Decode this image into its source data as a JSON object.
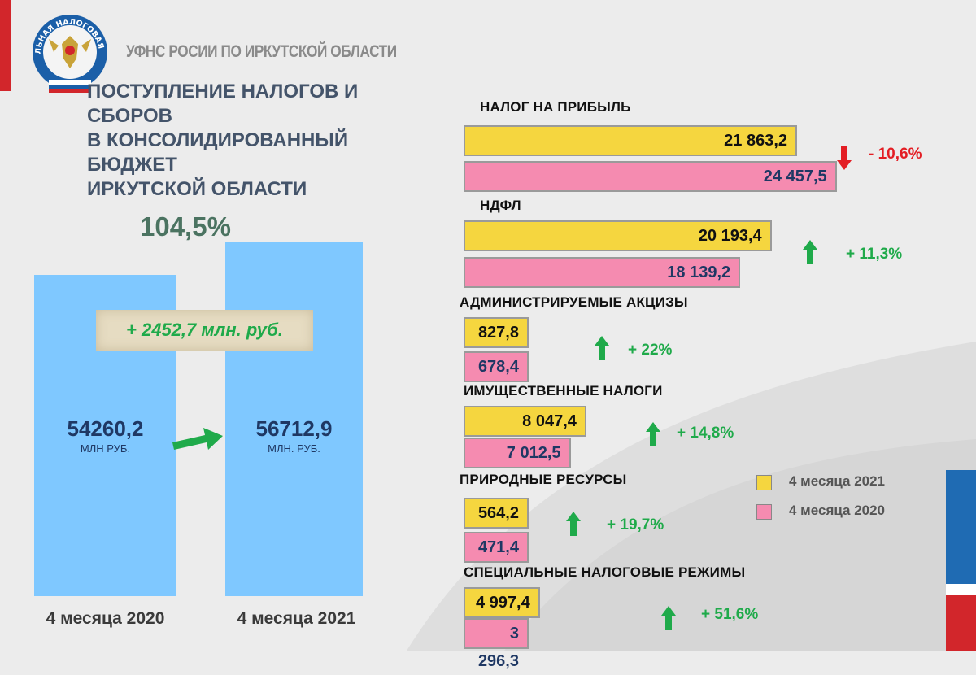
{
  "header": {
    "org": "УФНС РОСИИ ПО ИРКУТСКОЙ ОБЛАСТИ",
    "logo_text": "ФЕДЕРАЛЬНАЯ НАЛОГОВАЯ СЛУЖБА"
  },
  "title_lines": [
    "ПОСТУПЛЕНИЕ НАЛОГОВ И",
    "СБОРОВ",
    "В КОНСОЛИДИРОВАННЫЙ",
    "БЮДЖЕТ",
    "ИРКУТСКОЙ ОБЛАСТИ"
  ],
  "colors": {
    "year2021": "#f5d63f",
    "year2020": "#f58bb0",
    "column": "#7fc8ff",
    "increase": "#1faa4a",
    "decrease": "#e31e24"
  },
  "chart_data": [
    {
      "type": "bar",
      "percent": "104,5%",
      "difference": "+ 2452,7 млн. руб.",
      "categories": [
        "4 месяца 2020",
        "4 месяца 2021"
      ],
      "values": [
        54260.2,
        56712.9
      ],
      "value_labels": [
        "54260,2",
        "56712,9"
      ],
      "units": [
        "МЛН РУБ.",
        "МЛН. РУБ."
      ],
      "ylim": [
        0,
        60000
      ]
    },
    {
      "type": "bar",
      "orientation": "horizontal",
      "legend": [
        "4 месяца 2021",
        "4 месяца 2020"
      ],
      "legend_placement": "right",
      "categories": [
        {
          "name": "НАЛОГ НА ПРИБЫЛЬ",
          "v2021": 21863.2,
          "v2020": 24457.5,
          "l2021": "21 863,2",
          "l2020": "24 457,5",
          "change": "- 10,6%",
          "direction": "down"
        },
        {
          "name": "НДФЛ",
          "v2021": 20193.4,
          "v2020": 18139.2,
          "l2021": "20 193,4",
          "l2020": "18 139,2",
          "change": "+ 11,3%",
          "direction": "up"
        },
        {
          "name": "АДМИНИСТРИРУЕМЫЕ АКЦИЗЫ",
          "v2021": 827.8,
          "v2020": 678.4,
          "l2021": "827,8",
          "l2020": "678,4",
          "change": "+ 22%",
          "direction": "up"
        },
        {
          "name": "ИМУЩЕСТВЕННЫЕ НАЛОГИ",
          "v2021": 8047.4,
          "v2020": 7012.5,
          "l2021": "8 047,4",
          "l2020": "7 012,5",
          "change": "+ 14,8%",
          "direction": "up"
        },
        {
          "name": "ПРИРОДНЫЕ РЕСУРСЫ",
          "v2021": 564.2,
          "v2020": 471.4,
          "l2021": "564,2",
          "l2020": "471,4",
          "change": "+ 19,7%",
          "direction": "up"
        },
        {
          "name": "СПЕЦИАЛЬНЫЕ НАЛОГОВЫЕ РЕЖИМЫ",
          "v2021": 4997.4,
          "v2020": 3296.3,
          "l2021": "4 997,4",
          "l2020": "3 296,3",
          "change": "+ 51,6%",
          "direction": "up"
        }
      ]
    }
  ]
}
